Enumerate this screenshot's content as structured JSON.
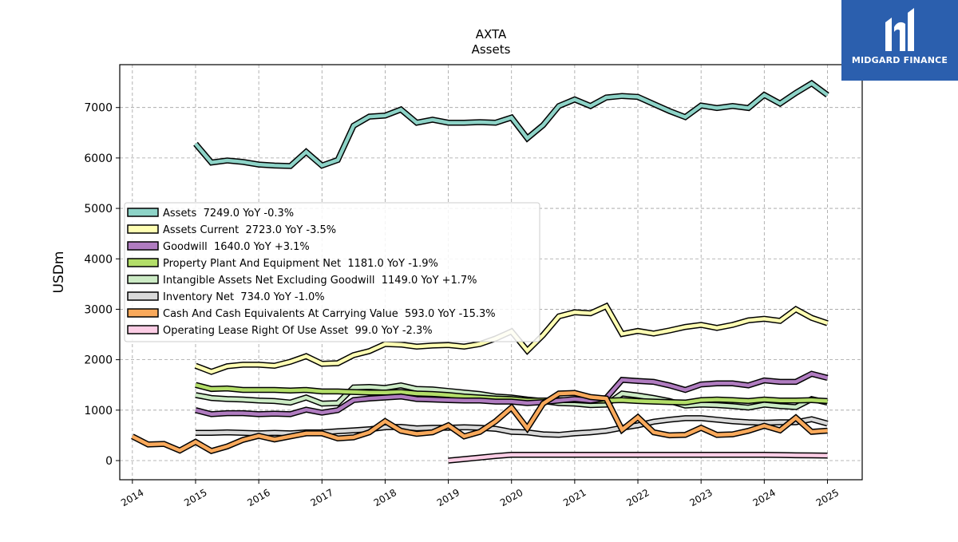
{
  "chart_data": {
    "type": "line",
    "title": "AXTA",
    "subtitle": "Assets",
    "ylabel": "USDm",
    "xlabel": "",
    "ylim": [
      -380,
      7850
    ],
    "xlim": [
      2013.8,
      2025.55
    ],
    "yticks": [
      0,
      1000,
      2000,
      3000,
      4000,
      5000,
      6000,
      7000
    ],
    "xticks": [
      "2014",
      "2015",
      "2016",
      "2017",
      "2018",
      "2019",
      "2020",
      "2021",
      "2022",
      "2023",
      "2024",
      "2025"
    ],
    "grid": true,
    "legend_position": "center-left",
    "series": [
      {
        "name": "Assets",
        "legend": "Assets  7249.0 YoY -0.3%",
        "color": "#8dd3c7",
        "x": [
          2015.0,
          2015.25,
          2015.5,
          2015.75,
          2016.0,
          2016.25,
          2016.5,
          2016.75,
          2017.0,
          2017.25,
          2017.5,
          2017.75,
          2018.0,
          2018.25,
          2018.5,
          2018.75,
          2019.0,
          2019.25,
          2019.5,
          2019.75,
          2020.0,
          2020.25,
          2020.5,
          2020.75,
          2021.0,
          2021.25,
          2021.5,
          2021.75,
          2022.0,
          2022.25,
          2022.5,
          2022.75,
          2023.0,
          2023.25,
          2023.5,
          2023.75,
          2024.0,
          2024.25,
          2024.5,
          2024.75,
          2025.0
        ],
        "y": [
          6280,
          5910,
          5950,
          5920,
          5870,
          5850,
          5840,
          6120,
          5850,
          5960,
          6640,
          6820,
          6840,
          6960,
          6700,
          6760,
          6700,
          6700,
          6710,
          6700,
          6800,
          6390,
          6650,
          7030,
          7160,
          7030,
          7200,
          7230,
          7210,
          7070,
          6930,
          6810,
          7040,
          6990,
          7030,
          6990,
          7250,
          7080,
          7290,
          7480,
          7249
        ]
      },
      {
        "name": "Assets Current",
        "legend": "Assets Current  2723.0 YoY -3.5%",
        "color": "#ffffb3",
        "x": [
          2015.0,
          2015.25,
          2015.5,
          2015.75,
          2016.0,
          2016.25,
          2016.5,
          2016.75,
          2017.0,
          2017.25,
          2017.5,
          2017.75,
          2018.0,
          2018.25,
          2018.5,
          2018.75,
          2019.0,
          2019.25,
          2019.5,
          2019.75,
          2020.0,
          2020.25,
          2020.5,
          2020.75,
          2021.0,
          2021.25,
          2021.5,
          2021.75,
          2022.0,
          2022.25,
          2022.5,
          2022.75,
          2023.0,
          2023.25,
          2023.5,
          2023.75,
          2024.0,
          2024.25,
          2024.5,
          2024.75,
          2025.0
        ],
        "y": [
          1880,
          1760,
          1870,
          1900,
          1900,
          1880,
          1960,
          2070,
          1920,
          1930,
          2090,
          2170,
          2310,
          2300,
          2260,
          2280,
          2290,
          2260,
          2310,
          2420,
          2560,
          2180,
          2490,
          2860,
          2940,
          2920,
          3060,
          2510,
          2570,
          2520,
          2580,
          2650,
          2690,
          2630,
          2690,
          2780,
          2810,
          2770,
          3000,
          2830,
          2723
        ]
      },
      {
        "name": "Goodwill",
        "legend": "Goodwill  1640.0 YoY +3.1%",
        "color": "#bebada",
        "stroke": "#b07cc0",
        "x": [
          2015.0,
          2015.25,
          2015.5,
          2015.75,
          2016.0,
          2016.25,
          2016.5,
          2016.75,
          2017.0,
          2017.25,
          2017.5,
          2017.75,
          2018.0,
          2018.25,
          2018.5,
          2018.75,
          2019.0,
          2019.25,
          2019.5,
          2019.75,
          2020.0,
          2020.25,
          2020.5,
          2020.75,
          2021.0,
          2021.25,
          2021.5,
          2021.75,
          2022.0,
          2022.25,
          2022.5,
          2022.75,
          2023.0,
          2023.25,
          2023.5,
          2023.75,
          2024.0,
          2024.25,
          2024.5,
          2024.75,
          2025.0
        ],
        "y": [
          1000,
          920,
          940,
          940,
          920,
          930,
          920,
          1010,
          950,
          1000,
          1200,
          1230,
          1250,
          1270,
          1220,
          1210,
          1200,
          1190,
          1190,
          1170,
          1170,
          1140,
          1160,
          1190,
          1220,
          1190,
          1240,
          1600,
          1580,
          1560,
          1490,
          1400,
          1510,
          1530,
          1530,
          1490,
          1590,
          1560,
          1560,
          1720,
          1640
        ]
      },
      {
        "name": "Property Plant And Equipment Net",
        "legend": "Property Plant And Equipment Net  1181.0 YoY -1.9%",
        "color": "#b3de69",
        "x": [
          2015.0,
          2015.25,
          2015.5,
          2015.75,
          2016.0,
          2016.25,
          2016.5,
          2016.75,
          2017.0,
          2017.25,
          2017.5,
          2017.75,
          2018.0,
          2018.25,
          2018.5,
          2018.75,
          2019.0,
          2019.25,
          2019.5,
          2019.75,
          2020.0,
          2020.25,
          2020.5,
          2020.75,
          2021.0,
          2021.25,
          2021.5,
          2021.75,
          2022.0,
          2022.25,
          2022.5,
          2022.75,
          2023.0,
          2023.25,
          2023.5,
          2023.75,
          2024.0,
          2024.25,
          2024.5,
          2024.75,
          2025.0
        ],
        "y": [
          1500,
          1420,
          1430,
          1400,
          1400,
          1400,
          1390,
          1400,
          1370,
          1370,
          1360,
          1350,
          1350,
          1360,
          1330,
          1320,
          1300,
          1270,
          1250,
          1230,
          1220,
          1190,
          1190,
          1200,
          1200,
          1180,
          1190,
          1200,
          1180,
          1170,
          1160,
          1150,
          1200,
          1210,
          1200,
          1180,
          1210,
          1190,
          1190,
          1200,
          1181
        ]
      },
      {
        "name": "Intangible Assets Net Excluding Goodwill",
        "legend": "Intangible Assets Net Excluding Goodwill  1149.0 YoY +1.7%",
        "color": "#ccebc5",
        "x": [
          2015.0,
          2015.25,
          2015.5,
          2015.75,
          2016.0,
          2016.25,
          2016.5,
          2016.75,
          2017.0,
          2017.25,
          2017.5,
          2017.75,
          2018.0,
          2018.25,
          2018.5,
          2018.75,
          2019.0,
          2019.25,
          2019.5,
          2019.75,
          2020.0,
          2020.25,
          2020.5,
          2020.75,
          2021.0,
          2021.25,
          2021.5,
          2021.75,
          2022.0,
          2022.25,
          2022.5,
          2022.75,
          2023.0,
          2023.25,
          2023.5,
          2023.75,
          2024.0,
          2024.25,
          2024.5,
          2024.75,
          2025.0
        ],
        "y": [
          1300,
          1240,
          1220,
          1210,
          1190,
          1180,
          1150,
          1250,
          1130,
          1140,
          1450,
          1460,
          1440,
          1490,
          1420,
          1410,
          1380,
          1350,
          1320,
          1270,
          1250,
          1210,
          1180,
          1140,
          1130,
          1100,
          1110,
          1330,
          1290,
          1240,
          1180,
          1090,
          1110,
          1100,
          1080,
          1050,
          1110,
          1080,
          1060,
          1220,
          1149
        ]
      },
      {
        "name": "Inventory Net",
        "legend": "Inventory Net  734.0 YoY -1.0%",
        "color": "#d9d9d9",
        "x": [
          2015.0,
          2015.25,
          2015.5,
          2015.75,
          2016.0,
          2016.25,
          2016.5,
          2016.75,
          2017.0,
          2017.25,
          2017.5,
          2017.75,
          2018.0,
          2018.25,
          2018.5,
          2018.75,
          2019.0,
          2019.25,
          2019.5,
          2019.75,
          2020.0,
          2020.25,
          2020.5,
          2020.75,
          2021.0,
          2021.25,
          2021.5,
          2021.75,
          2022.0,
          2022.25,
          2022.5,
          2022.75,
          2023.0,
          2023.25,
          2023.5,
          2023.75,
          2024.0,
          2024.25,
          2024.5,
          2024.75,
          2025.0
        ],
        "y": [
          550,
          550,
          560,
          550,
          540,
          550,
          540,
          560,
          560,
          580,
          600,
          620,
          660,
          670,
          640,
          650,
          650,
          660,
          650,
          630,
          570,
          560,
          520,
          510,
          540,
          560,
          590,
          650,
          700,
          770,
          810,
          840,
          840,
          810,
          780,
          760,
          750,
          760,
          760,
          820,
          734
        ]
      },
      {
        "name": "Cash And Cash Equivalents At Carrying Value",
        "legend": "Cash And Cash Equivalents At Carrying Value  593.0 YoY -15.3%",
        "color": "#f9a95b",
        "x": [
          2014.0,
          2014.25,
          2014.5,
          2014.75,
          2015.0,
          2015.25,
          2015.5,
          2015.75,
          2016.0,
          2016.25,
          2016.5,
          2016.75,
          2017.0,
          2017.25,
          2017.5,
          2017.75,
          2018.0,
          2018.25,
          2018.5,
          2018.75,
          2019.0,
          2019.25,
          2019.5,
          2019.75,
          2020.0,
          2020.25,
          2020.5,
          2020.75,
          2021.0,
          2021.25,
          2021.5,
          2021.75,
          2022.0,
          2022.25,
          2022.5,
          2022.75,
          2023.0,
          2023.25,
          2023.5,
          2023.75,
          2024.0,
          2024.25,
          2024.5,
          2024.75,
          2025.0
        ],
        "y": [
          480,
          320,
          330,
          200,
          370,
          190,
          280,
          410,
          490,
          420,
          480,
          540,
          540,
          440,
          460,
          560,
          780,
          590,
          530,
          560,
          700,
          480,
          570,
          780,
          1050,
          640,
          1130,
          1330,
          1340,
          1260,
          1230,
          610,
          860,
          560,
          500,
          510,
          650,
          510,
          520,
          590,
          690,
          600,
          850,
          570,
          593
        ]
      },
      {
        "name": "Operating Lease Right Of Use Asset",
        "legend": "Operating Lease Right Of Use Asset  99.0 YoY -2.3%",
        "color": "#fccde5",
        "x": [
          2019.0,
          2019.25,
          2019.5,
          2019.75,
          2020.0,
          2020.25,
          2020.5,
          2020.75,
          2021.0,
          2021.25,
          2021.5,
          2021.75,
          2022.0,
          2022.25,
          2022.5,
          2022.75,
          2023.0,
          2023.25,
          2023.5,
          2023.75,
          2024.0,
          2024.25,
          2024.5,
          2024.75,
          2025.0
        ],
        "y": [
          0,
          30,
          60,
          90,
          115,
          115,
          115,
          115,
          115,
          115,
          115,
          115,
          115,
          115,
          115,
          115,
          115,
          115,
          115,
          115,
          115,
          110,
          105,
          102,
          99
        ]
      }
    ]
  },
  "brand": {
    "name": "MIDGARD FINANCE",
    "background": "#2b5fae"
  }
}
